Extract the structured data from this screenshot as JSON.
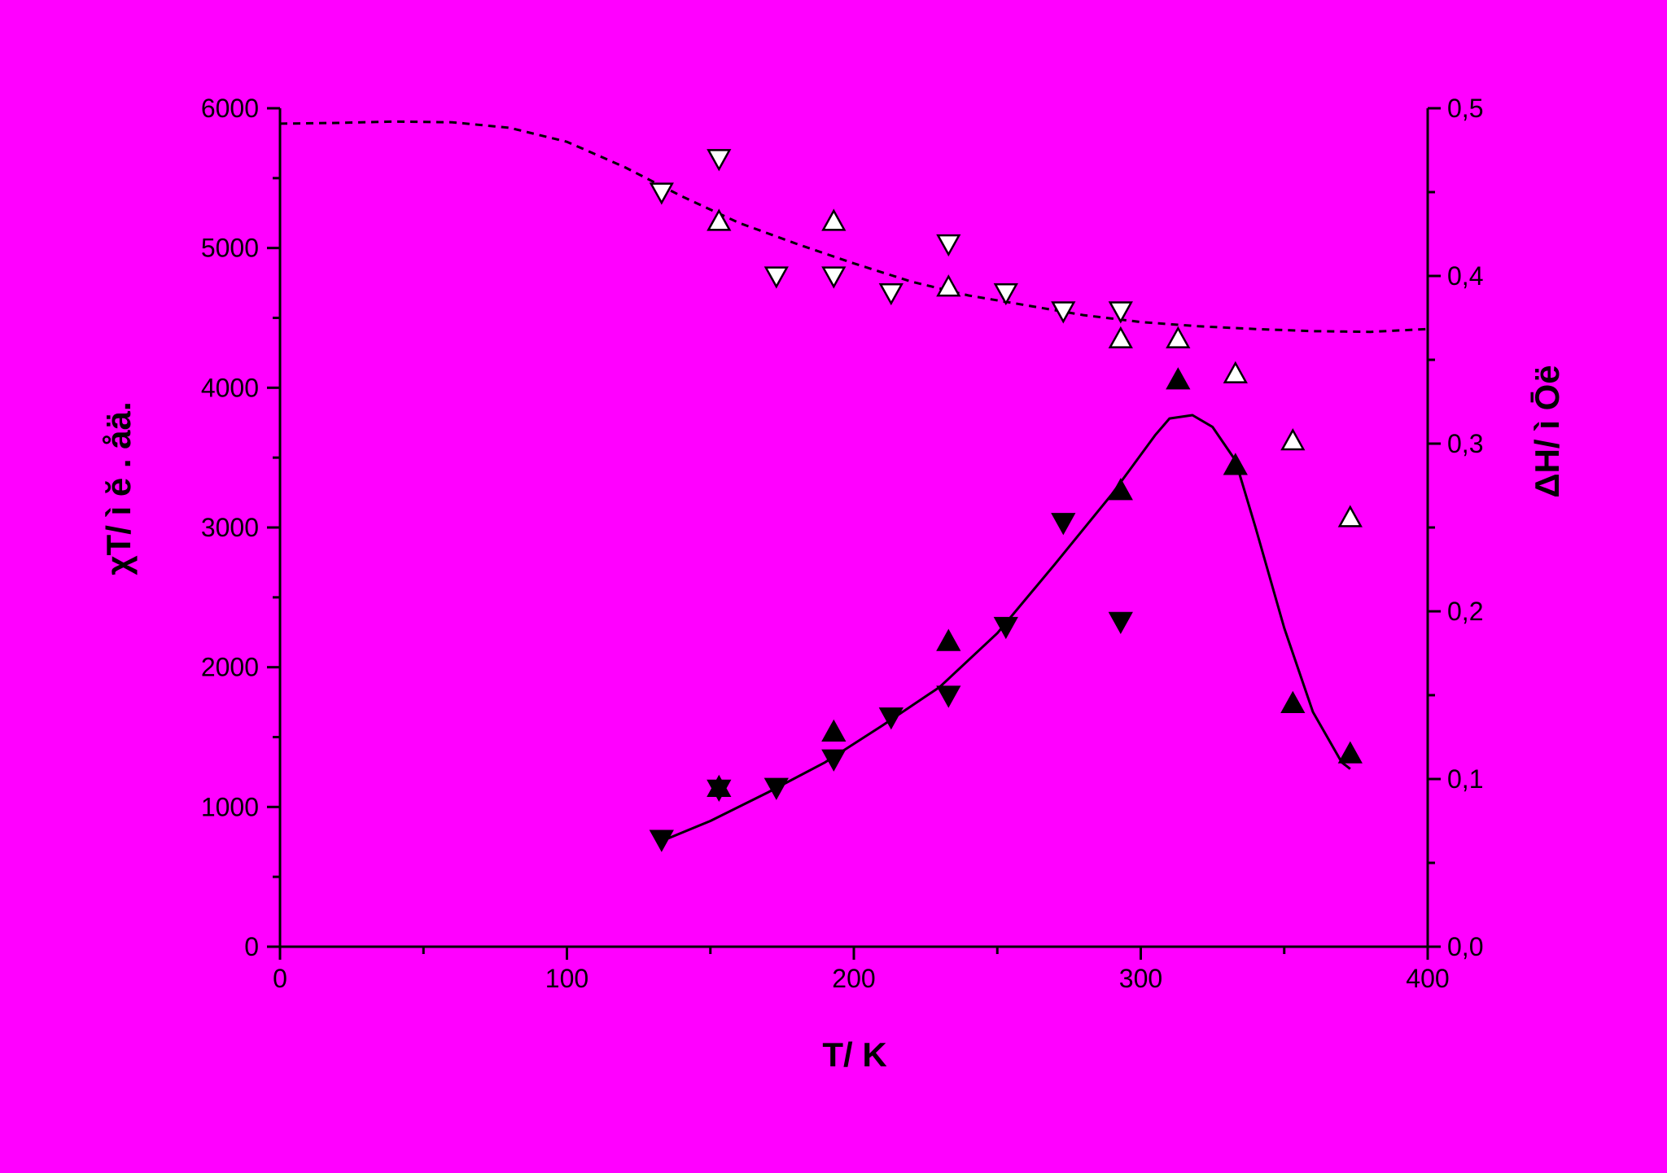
{
  "colors": {
    "background": "#FF00FF",
    "ink": "#000000",
    "open_marker_fill": "#FFFFFF"
  },
  "chart_data": {
    "type": "scatter",
    "title": "",
    "xlabel": "T/ K",
    "ylabel_left": "χT/ ì ĕ . åä.",
    "ylabel_right": "ΔH/ ì Ōë",
    "xlim": [
      0,
      400
    ],
    "ylim_left": [
      0,
      6000
    ],
    "ylim_right": [
      0.0,
      0.5
    ],
    "x_ticks": [
      "0",
      "100",
      "200",
      "300",
      "400"
    ],
    "y_left_ticks": [
      "0",
      "1000",
      "2000",
      "3000",
      "4000",
      "5000",
      "6000"
    ],
    "y_right_ticks": [
      "0,0",
      "0,1",
      "0,2",
      "0,3",
      "0,4",
      "0,5"
    ],
    "grid": false,
    "series": [
      {
        "marker": "triangle-down-open",
        "axis": "left",
        "points": [
          [
            133,
            5400
          ],
          [
            153,
            5640
          ],
          [
            173,
            4800
          ],
          [
            193,
            4800
          ],
          [
            213,
            4680
          ],
          [
            233,
            5030
          ],
          [
            253,
            4680
          ],
          [
            273,
            4550
          ],
          [
            293,
            4550
          ]
        ]
      },
      {
        "marker": "triangle-up-open",
        "axis": "left",
        "points": [
          [
            153,
            5190
          ],
          [
            193,
            5190
          ],
          [
            233,
            4720
          ],
          [
            293,
            4350
          ],
          [
            313,
            4350
          ],
          [
            333,
            4100
          ],
          [
            353,
            3620
          ],
          [
            373,
            3070
          ]
        ]
      },
      {
        "marker": "triangle-down-filled",
        "axis": "right",
        "points": [
          [
            133,
            0.064
          ],
          [
            153,
            0.094
          ],
          [
            173,
            0.095
          ],
          [
            193,
            0.112
          ],
          [
            213,
            0.137
          ],
          [
            233,
            0.15
          ],
          [
            253,
            0.191
          ],
          [
            273,
            0.253
          ],
          [
            293,
            0.194
          ]
        ]
      },
      {
        "marker": "triangle-up-filled",
        "axis": "right",
        "points": [
          [
            153,
            0.095
          ],
          [
            193,
            0.128
          ],
          [
            233,
            0.182
          ],
          [
            293,
            0.272
          ],
          [
            313,
            0.338
          ],
          [
            333,
            0.287
          ],
          [
            353,
            0.145
          ],
          [
            373,
            0.115
          ]
        ]
      },
      {
        "line": "dashed",
        "axis": "left",
        "points": [
          [
            0,
            5890
          ],
          [
            20,
            5895
          ],
          [
            40,
            5905
          ],
          [
            60,
            5900
          ],
          [
            80,
            5860
          ],
          [
            100,
            5760
          ],
          [
            120,
            5580
          ],
          [
            140,
            5370
          ],
          [
            160,
            5180
          ],
          [
            180,
            5030
          ],
          [
            200,
            4890
          ],
          [
            220,
            4760
          ],
          [
            240,
            4660
          ],
          [
            260,
            4590
          ],
          [
            280,
            4520
          ],
          [
            300,
            4470
          ],
          [
            320,
            4440
          ],
          [
            340,
            4420
          ],
          [
            360,
            4405
          ],
          [
            380,
            4400
          ],
          [
            400,
            4420
          ]
        ]
      },
      {
        "line": "solid",
        "axis": "right",
        "points": [
          [
            133,
            0.063
          ],
          [
            150,
            0.075
          ],
          [
            170,
            0.092
          ],
          [
            190,
            0.11
          ],
          [
            210,
            0.132
          ],
          [
            230,
            0.155
          ],
          [
            250,
            0.187
          ],
          [
            270,
            0.228
          ],
          [
            290,
            0.27
          ],
          [
            305,
            0.305
          ],
          [
            310,
            0.315
          ],
          [
            318,
            0.317
          ],
          [
            325,
            0.31
          ],
          [
            333,
            0.29
          ],
          [
            340,
            0.25
          ],
          [
            350,
            0.19
          ],
          [
            360,
            0.14
          ],
          [
            370,
            0.11
          ],
          [
            373,
            0.106
          ]
        ]
      }
    ]
  }
}
